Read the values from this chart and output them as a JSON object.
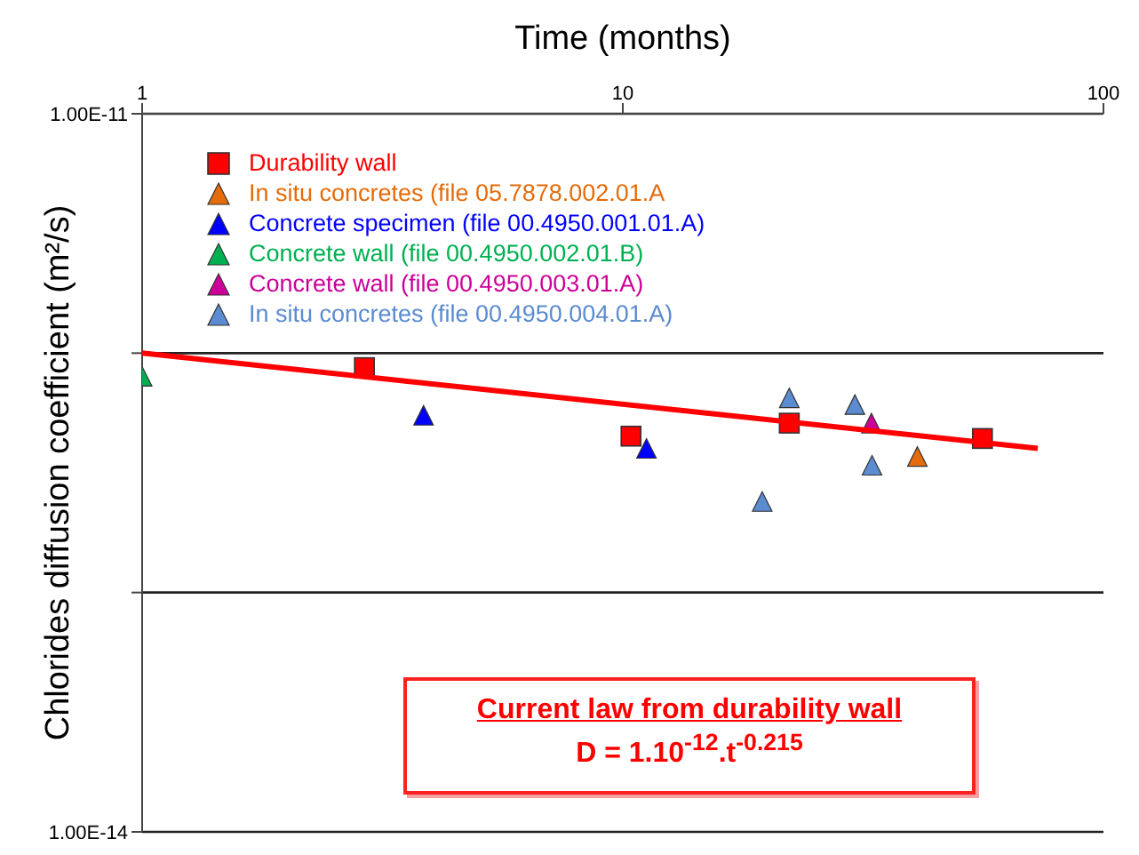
{
  "chart_data": {
    "type": "scatter",
    "xlabel": "Time (months)",
    "ylabel": "Chlorides diffusion coefficient (m²/s)",
    "log": "xy",
    "xlim": [
      1,
      100
    ],
    "xticks": [
      1,
      10,
      100
    ],
    "ylim": [
      1e-14,
      1e-11
    ],
    "yticks": [
      {
        "value": 1e-11,
        "label": "1.00E-11"
      },
      {
        "value": 1e-12,
        "label": null
      },
      {
        "value": 1e-13,
        "label": null
      },
      {
        "value": 1e-14,
        "label": "1.00E-14"
      }
    ],
    "grid": "y",
    "legend": "top left",
    "series": [
      {
        "name": "Durability wall",
        "color": "#ff0000",
        "marker": "square",
        "x": [
          2.9,
          10.4,
          22.2,
          56
        ],
        "values": [
          8.7e-13,
          4.5e-13,
          5.1e-13,
          4.4e-13
        ]
      },
      {
        "name": "In situ concretes (file 05.7878.002.01.A",
        "color": "#e46c0a",
        "marker": "triangle",
        "x": [
          41
        ],
        "values": [
          3.7e-13
        ]
      },
      {
        "name": "Concrete specimen (file 00.4950.001.01.A)",
        "color": "#0000ff",
        "marker": "triangle",
        "x": [
          3.85,
          11.2
        ],
        "values": [
          5.5e-13,
          4e-13
        ]
      },
      {
        "name": "Concrete wall (file 00.4950.002.01.B)",
        "color": "#00b050",
        "marker": "triangle",
        "x": [
          1
        ],
        "values": [
          8e-13
        ]
      },
      {
        "name": "Concrete wall (file 00.4950.003.01.A)",
        "color": "#cc0099",
        "marker": "triangle",
        "x": [
          32.9
        ],
        "values": [
          5.1e-13
        ]
      },
      {
        "name": "In situ concretes (file 00.4950.004.01.A)",
        "color": "#5b8bd0",
        "marker": "triangle",
        "x": [
          22.2,
          30.4,
          33,
          19.5
        ],
        "values": [
          6.5e-13,
          6.1e-13,
          3.4e-13,
          2.4e-13
        ]
      },
      {
        "type": "line",
        "color": "#ff0000",
        "marker": "none",
        "x": [
          1,
          73
        ],
        "values": [
          1e-12,
          4e-13
        ]
      }
    ],
    "annotations": [
      "Current law from durability wall",
      "D = 1.10$^{-12}$.t$^{-0.215}$"
    ]
  }
}
